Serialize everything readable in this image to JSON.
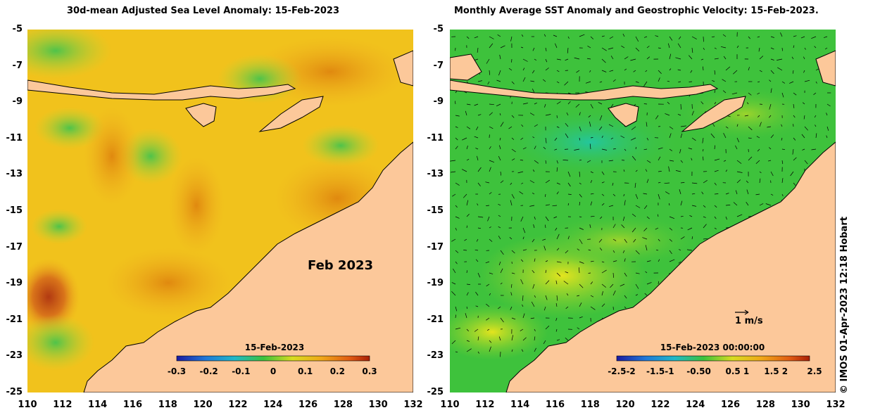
{
  "left_panel": {
    "title": "30d-mean Adjusted Sea Level Anomaly: 15-Feb-2023",
    "month_label": "Feb 2023",
    "colorbar": {
      "title": "15-Feb-2023",
      "ticks": [
        "-0.3",
        "-0.2",
        "-0.1",
        "0",
        "0.1",
        "0.2",
        "0.3"
      ]
    }
  },
  "right_panel": {
    "title": "Monthly Average SST Anomaly  and Geostrophic Velocity: 15-Feb-2023.",
    "scale_label": "1 m/s",
    "colorbar": {
      "title": "15-Feb-2023 00:00:00",
      "ticks": [
        "-2.5-2",
        "-1.5-1",
        "-0.50",
        "0.5 1",
        "1.5 2",
        "2.5"
      ]
    }
  },
  "axes": {
    "lat_ticks": [
      "-5",
      "-7",
      "-9",
      "-11",
      "-13",
      "-15",
      "-17",
      "-19",
      "-21",
      "-23",
      "-25"
    ],
    "lon_ticks": [
      "110",
      "112",
      "114",
      "116",
      "118",
      "120",
      "122",
      "124",
      "126",
      "128",
      "130",
      "132"
    ]
  },
  "credit": "© IMOS 01-Apr-2023 12:18 Hobart",
  "colors": {
    "land": "#fcc89a",
    "ocean_mid_left": "#f2c51e",
    "ocean_mid_right": "#3ec23c"
  }
}
